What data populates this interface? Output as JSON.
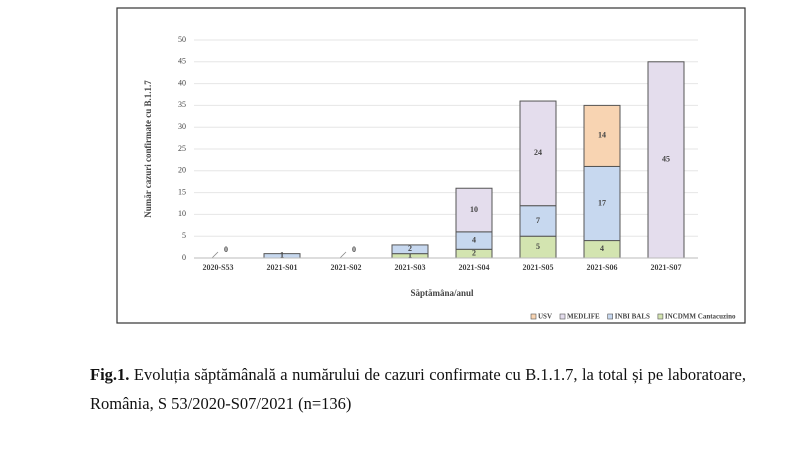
{
  "chart_data": {
    "type": "stacked-bar",
    "y_label": "Număr cazuri confirmate cu B.1.1.7",
    "x_label": "Săptămâna/anul",
    "categories": [
      "2020-S53",
      "2021-S01",
      "2021-S02",
      "2021-S03",
      "2021-S04",
      "2021-S05",
      "2021-S06",
      "2021-S07"
    ],
    "series": [
      {
        "name": "USV",
        "color": "#f8d4b2",
        "values": [
          null,
          null,
          null,
          null,
          null,
          null,
          14,
          null
        ]
      },
      {
        "name": "MEDLIFE",
        "color": "#e4dded",
        "values": [
          null,
          null,
          null,
          null,
          10,
          24,
          null,
          45
        ]
      },
      {
        "name": "INBI BALS",
        "color": "#c7d8ef",
        "values": [
          null,
          1,
          null,
          2,
          4,
          7,
          17,
          null
        ]
      },
      {
        "name": "INCDMM Cantacuzino",
        "color": "#d3e4b0",
        "values": [
          0,
          null,
          0,
          1,
          2,
          5,
          4,
          null
        ]
      }
    ],
    "ylim": [
      0,
      50
    ],
    "yticks": [
      0,
      5,
      10,
      15,
      20,
      25,
      30,
      35,
      40,
      45,
      50
    ],
    "grid": true
  },
  "caption": {
    "label": "Fig.1.",
    "text": "Evoluția săptămânală a numărului de cazuri confirmate cu B.1.1.7, la total și pe laboratoare, România, S 53/2020-S07/2021 (n=136)"
  }
}
